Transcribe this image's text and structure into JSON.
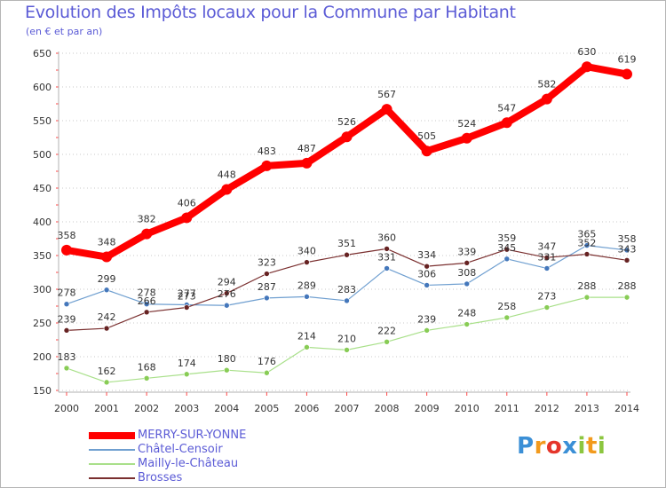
{
  "chart_data": {
    "type": "line",
    "title": "Evolution des Impôts locaux pour la Commune par Habitant",
    "subtitle": "(en € et par an)",
    "xlabel": "",
    "ylabel": "",
    "categories": [
      "2000",
      "2001",
      "2002",
      "2003",
      "2004",
      "2005",
      "2006",
      "2007",
      "2008",
      "2009",
      "2010",
      "2011",
      "2012",
      "2013",
      "2014"
    ],
    "ylim": [
      150,
      650
    ],
    "yticks": [
      150,
      200,
      250,
      300,
      350,
      400,
      450,
      500,
      550,
      600,
      650
    ],
    "grid": true,
    "legend_position": "bottom-left",
    "series": [
      {
        "name": "MERRY-SUR-YONNE",
        "color": "#ff0000",
        "values": [
          358,
          348,
          382,
          406,
          448,
          483,
          487,
          526,
          567,
          505,
          524,
          547,
          582,
          630,
          619
        ],
        "labels_shown": true
      },
      {
        "name": "Châtel-Censoir",
        "color": "#6699cc",
        "values": [
          278,
          299,
          278,
          277,
          276,
          287,
          289,
          283,
          331,
          306,
          308,
          345,
          331,
          365,
          358
        ],
        "labels_shown": true
      },
      {
        "name": "Mailly-le-Château",
        "color": "#99dd77",
        "values": [
          183,
          162,
          168,
          174,
          180,
          176,
          214,
          210,
          222,
          239,
          248,
          258,
          273,
          288,
          288
        ],
        "labels_shown": true
      },
      {
        "name": "Brosses",
        "color": "#883333",
        "values": [
          239,
          242,
          266,
          273,
          294,
          323,
          340,
          351,
          360,
          334,
          339,
          359,
          347,
          352,
          343
        ],
        "labels_shown": true
      }
    ],
    "data_labels": [
      {
        "series": 0,
        "labels": [
          "358",
          "348",
          "382",
          "406",
          "448",
          "483",
          "487",
          "526",
          "567",
          "505",
          "524",
          "547",
          "582",
          "630",
          "619"
        ]
      },
      {
        "series": 1,
        "labels": [
          "278",
          "299",
          "278",
          "277",
          "276",
          "287",
          "289",
          "283",
          "331",
          "306",
          "308",
          "345",
          "331",
          "365",
          "358"
        ]
      },
      {
        "series": 2,
        "labels": [
          "183",
          "162",
          "168",
          "174",
          "180",
          "176",
          "214",
          "210",
          "222",
          "239",
          "248",
          "258",
          "273",
          "288",
          "288"
        ]
      },
      {
        "series": 3,
        "labels": [
          "239",
          "242",
          "266",
          "273",
          "294",
          "323",
          "340",
          "351",
          "360",
          "334",
          "339",
          "359",
          "347",
          "352",
          "343"
        ]
      }
    ]
  },
  "logo": {
    "text": "Proxiti",
    "letters": [
      "P",
      "r",
      "o",
      "x",
      "i",
      "t",
      "i"
    ],
    "colors": [
      "#3b8fd6",
      "#f29a1d",
      "#e5352b",
      "#3b8fd6",
      "#8cc63f",
      "#f29a1d",
      "#8cc63f"
    ]
  }
}
